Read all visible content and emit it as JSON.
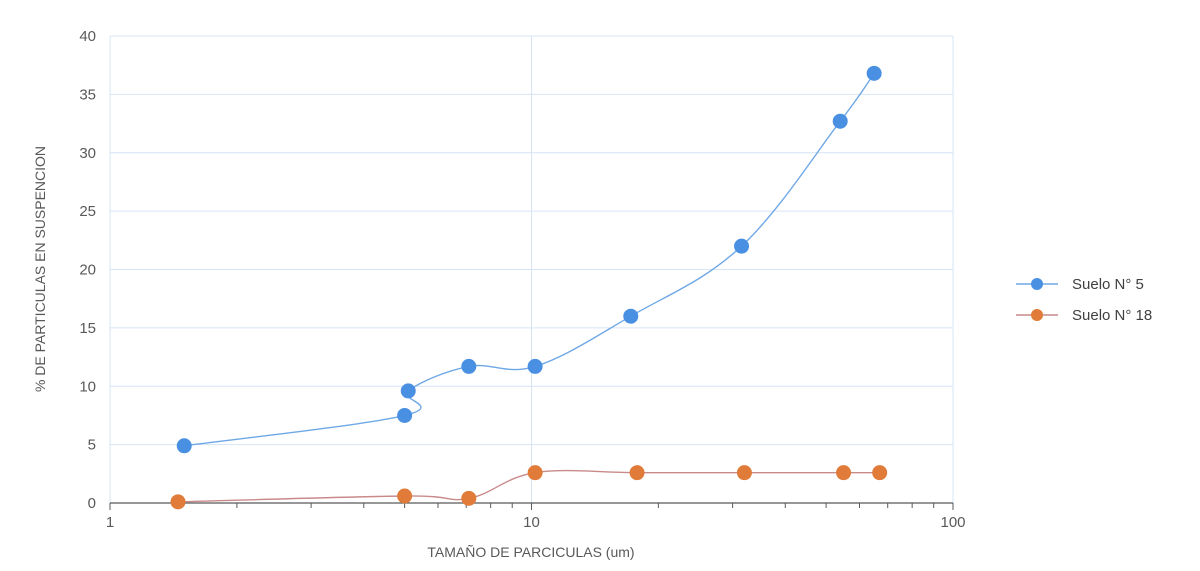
{
  "chart_data": {
    "type": "scatter",
    "title": "",
    "xlabel": "TAMAÑO DE PARCICULAS (um)",
    "ylabel": "% DE PARTICULAS EN SUSPENCION",
    "x_scale": "log",
    "xlim": [
      1,
      100
    ],
    "ylim": [
      0,
      40
    ],
    "x_ticks": [
      "1",
      "10",
      "100"
    ],
    "y_ticks": [
      "0",
      "5",
      "10",
      "15",
      "20",
      "25",
      "30",
      "35",
      "40"
    ],
    "grid": true,
    "legend_position": "right",
    "series": [
      {
        "name": "Suelo N° 5",
        "color": "#4a90e2",
        "line_color": "#6fa8e6",
        "x": [
          1.5,
          5.0,
          5.1,
          7.1,
          10.2,
          17.2,
          31.5,
          54.0,
          65.0
        ],
        "y": [
          4.9,
          7.5,
          9.6,
          11.7,
          11.7,
          16.0,
          22.0,
          32.7,
          36.8
        ]
      },
      {
        "name": "Suelo N° 18",
        "color": "#e07b39",
        "line_color": "#c98a8a",
        "x": [
          1.45,
          5.0,
          7.1,
          10.2,
          17.8,
          32.0,
          55.0,
          67.0
        ],
        "y": [
          0.1,
          0.6,
          0.4,
          2.6,
          2.6,
          2.6,
          2.6,
          2.6
        ]
      }
    ]
  }
}
